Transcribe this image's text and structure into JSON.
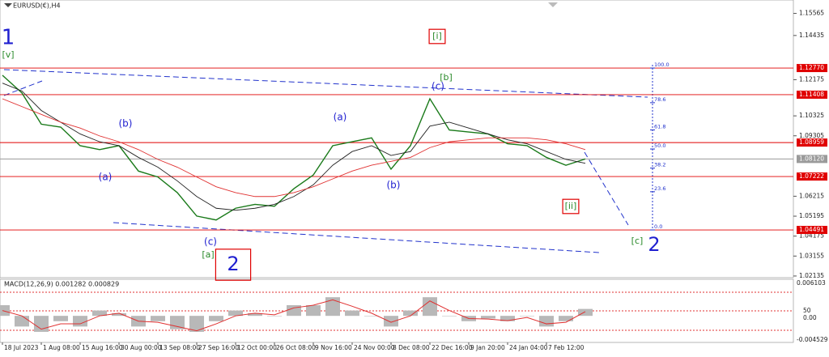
{
  "chart_data": {
    "type": "line",
    "title": "EURUSD(€),H4",
    "categories": [
      "18 Jul 2023",
      null,
      "1 Aug 08:00",
      null,
      "15 Aug 16:00",
      null,
      "30 Aug 00:00",
      null,
      "13 Sep 08:00",
      null,
      "27 Sep 16:00",
      null,
      "12 Oct 00:00",
      null,
      "26 Oct 08:00",
      null,
      "9 Nov 16:00",
      null,
      "24 Nov 00:00",
      null,
      "8 Dec 08:00",
      null,
      "22 Dec 16:00",
      null,
      "9 Jan 20:00",
      null,
      "24 Jan 04:00",
      null,
      "7 Feb 12:00",
      null,
      null
    ],
    "series": [
      {
        "name": "price",
        "color": "#1a7a1a",
        "values": [
          1.124,
          1.115,
          1.099,
          1.0975,
          1.088,
          1.086,
          1.088,
          1.075,
          1.072,
          1.064,
          1.052,
          1.05,
          1.056,
          1.058,
          1.057,
          1.066,
          1.073,
          1.088,
          1.09,
          1.092,
          1.076,
          1.088,
          1.112,
          1.096,
          1.095,
          1.094,
          1.089,
          1.088,
          1.082,
          1.078,
          1.0812
        ]
      },
      {
        "name": "fast-ma",
        "color": "#222222",
        "values": [
          1.12,
          1.116,
          1.106,
          1.1,
          1.094,
          1.09,
          1.088,
          1.082,
          1.077,
          1.07,
          1.062,
          1.056,
          1.055,
          1.056,
          1.058,
          1.062,
          1.068,
          1.078,
          1.085,
          1.088,
          1.083,
          1.085,
          1.098,
          1.1,
          1.097,
          1.094,
          1.091,
          1.089,
          1.085,
          1.081,
          1.079
        ]
      },
      {
        "name": "slow-ma",
        "color": "#e03030",
        "values": [
          1.112,
          1.108,
          1.104,
          1.1,
          1.097,
          1.093,
          1.09,
          1.086,
          1.081,
          1.077,
          1.072,
          1.067,
          1.064,
          1.062,
          1.062,
          1.064,
          1.067,
          1.071,
          1.075,
          1.078,
          1.08,
          1.082,
          1.087,
          1.09,
          1.091,
          1.092,
          1.092,
          1.092,
          1.091,
          1.089,
          1.086
        ]
      }
    ],
    "ylim": [
      1.0205,
      1.1625
    ],
    "yticks": [
      1.15565,
      1.14435,
      1.12175,
      1.10325,
      1.09305,
      1.06215,
      1.05195,
      1.04175,
      1.03155,
      1.02135
    ],
    "levels": [
      {
        "value": 1.1277,
        "label": "1.12770"
      },
      1.11408,
      1.08959,
      {
        "value": 1.0812,
        "label": "1.08120"
      },
      1.07222,
      1.04491
    ],
    "level_colors": [
      "#e00000",
      "#e00000",
      "#e00000",
      "#9a9a9a",
      "#e00000",
      "#e00000"
    ],
    "fibo": {
      "range": [
        1.04491,
        1.1277
      ],
      "levels": [
        {
          "value": 100,
          "label": "100.0"
        },
        78.6,
        61.8,
        {
          "value": 50,
          "label": "50.0"
        },
        38.2,
        23.6,
        {
          "value": 0,
          "label": "0.0"
        }
      ]
    },
    "annotations": [
      {
        "text": "1",
        "color": "#1f1fd0"
      },
      {
        "text": "[v]",
        "color": "#2a8a2a"
      },
      {
        "text": "[i]",
        "color": "#2a8a2a"
      },
      {
        "text": "(b)",
        "color": "#1f1fd0"
      },
      {
        "text": "(a)",
        "color": "#1f1fd0"
      },
      {
        "text": "(c)",
        "color": "#1f1fd0"
      },
      {
        "text": "[a]",
        "color": "#2a8a2a"
      },
      {
        "text": "2",
        "color": "#1f1fd0"
      },
      {
        "text": "(a)",
        "color": "#1f1fd0"
      },
      {
        "text": "(b)",
        "color": "#1f1fd0"
      },
      {
        "text": "(c)",
        "color": "#1f1fd0"
      },
      {
        "text": "[b]",
        "color": "#2a8a2a"
      },
      {
        "text": "[ii]",
        "color": "#2a8a2a"
      },
      {
        "text": "[c]",
        "color": "#2a8a2a"
      },
      {
        "text": "2",
        "color": "#1f1fd0"
      }
    ],
    "macd": {
      "title": "MACD(12,26,9) 0.001282 0.000829",
      "ylim": [
        -0.004529,
        0.006103
      ],
      "yticks": [
        0.006103,
        -0.004529
      ],
      "level_labels": [
        "50",
        "0.00"
      ],
      "series": [
        {
          "name": "main",
          "color": "#b8b8b8",
          "values": [
            0.002,
            -0.002,
            -0.003,
            -0.001,
            -0.002,
            0.001,
            0.0005,
            -0.002,
            -0.001,
            -0.0025,
            -0.003,
            -0.001,
            0.001,
            0.0005,
            0.0,
            0.002,
            0.002,
            0.0035,
            0.001,
            0.0,
            -0.002,
            0.001,
            0.0035,
            0.0,
            -0.001,
            -0.0005,
            -0.001,
            0.0,
            -0.002,
            -0.001,
            0.0013
          ]
        },
        {
          "name": "signal",
          "color": "#e03030",
          "values": [
            0.001,
            0.0,
            -0.0025,
            -0.0015,
            -0.0015,
            0.0,
            0.0005,
            -0.001,
            -0.0012,
            -0.002,
            -0.0028,
            -0.0015,
            0.0,
            0.0005,
            0.0002,
            0.0015,
            0.002,
            0.003,
            0.0018,
            0.0005,
            -0.0012,
            0.0,
            0.0028,
            0.001,
            -0.0005,
            -0.0006,
            -0.0009,
            -0.0003,
            -0.0015,
            -0.0012,
            0.0008
          ]
        }
      ]
    }
  }
}
